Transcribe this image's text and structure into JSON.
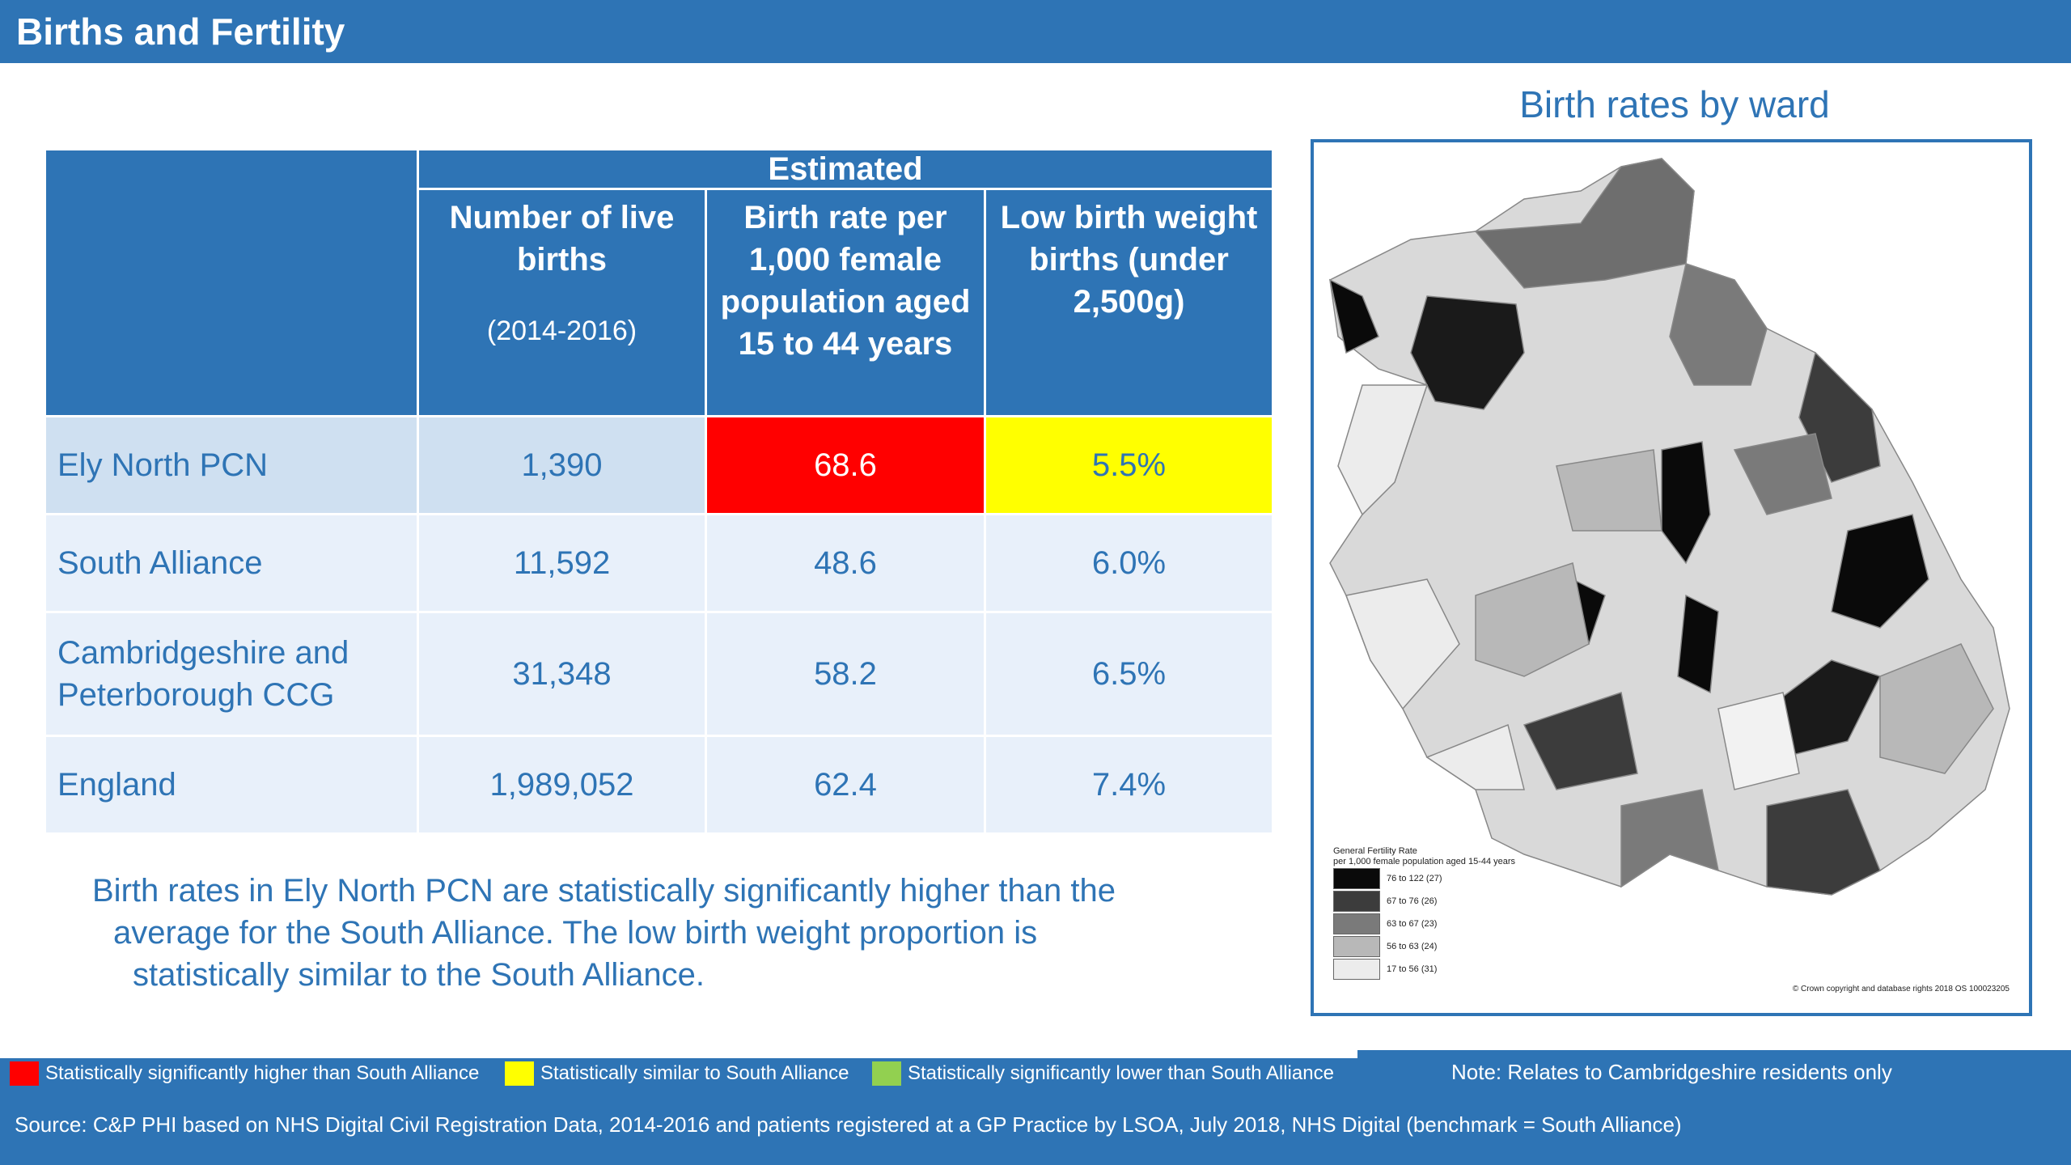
{
  "header": {
    "title": "Births and Fertility"
  },
  "table": {
    "group_header": "Estimated",
    "columns": [
      {
        "label": "Number of live births",
        "sub": "(2014-2016)"
      },
      {
        "label": "Birth rate per 1,000 female population aged 15 to 44 years",
        "sub": ""
      },
      {
        "label": "Low birth weight births (under 2,500g)",
        "sub": ""
      }
    ],
    "rows": [
      {
        "area": "Ely North PCN",
        "births": "1,390",
        "rate": "68.6",
        "lbw": "5.5%",
        "rate_status": "Statistically significantly higher than South Alliance",
        "lbw_status": "Statistically similar to South Alliance"
      },
      {
        "area": "South Alliance",
        "births": "11,592",
        "rate": "48.6",
        "lbw": "6.0%"
      },
      {
        "area": "Cambridgeshire and Peterborough CCG",
        "births": "31,348",
        "rate": "58.2",
        "lbw": "6.5%"
      },
      {
        "area": "England",
        "births": "1,989,052",
        "rate": "62.4",
        "lbw": "7.4%"
      }
    ]
  },
  "commentary": {
    "line1": "Birth rates in Ely North PCN are statistically significantly higher than the",
    "line2": "average for the South Alliance.  The low birth weight proportion is",
    "line3": "statistically similar to the South Alliance."
  },
  "map": {
    "title": "Birth rates by ward",
    "legend_title_1": "General Fertility Rate",
    "legend_title_2": "per 1,000 female population aged 15-44 years",
    "legend": [
      {
        "label": "76  to  122  (27)",
        "color": "#0a0a0a"
      },
      {
        "label": "67  to   76  (26)",
        "color": "#3c3c3c"
      },
      {
        "label": "63  to   67  (23)",
        "color": "#7a7a7a"
      },
      {
        "label": "56  to   63  (24)",
        "color": "#b8b8b8"
      },
      {
        "label": "17  to   56  (31)",
        "color": "#ececec"
      }
    ],
    "copyright": "© Crown copyright and database rights 2018 OS 100023205"
  },
  "key": [
    {
      "label": "Statistically significantly higher than South Alliance",
      "color": "#ff0000"
    },
    {
      "label": "Statistically similar to South Alliance",
      "color": "#ffff00"
    },
    {
      "label": "Statistically significantly lower than South Alliance",
      "color": "#92d050"
    }
  ],
  "note": "Note:  Relates to Cambridgeshire residents only",
  "source": "Source: C&P PHI based on NHS Digital Civil Registration Data, 2014-2016 and patients registered at a GP Practice by LSOA, July 2018, NHS Digital (benchmark = South Alliance)",
  "colors": {
    "brand": "#2e74b5",
    "higher": "#ff0000",
    "similar": "#ffff00",
    "lower": "#92d050"
  }
}
